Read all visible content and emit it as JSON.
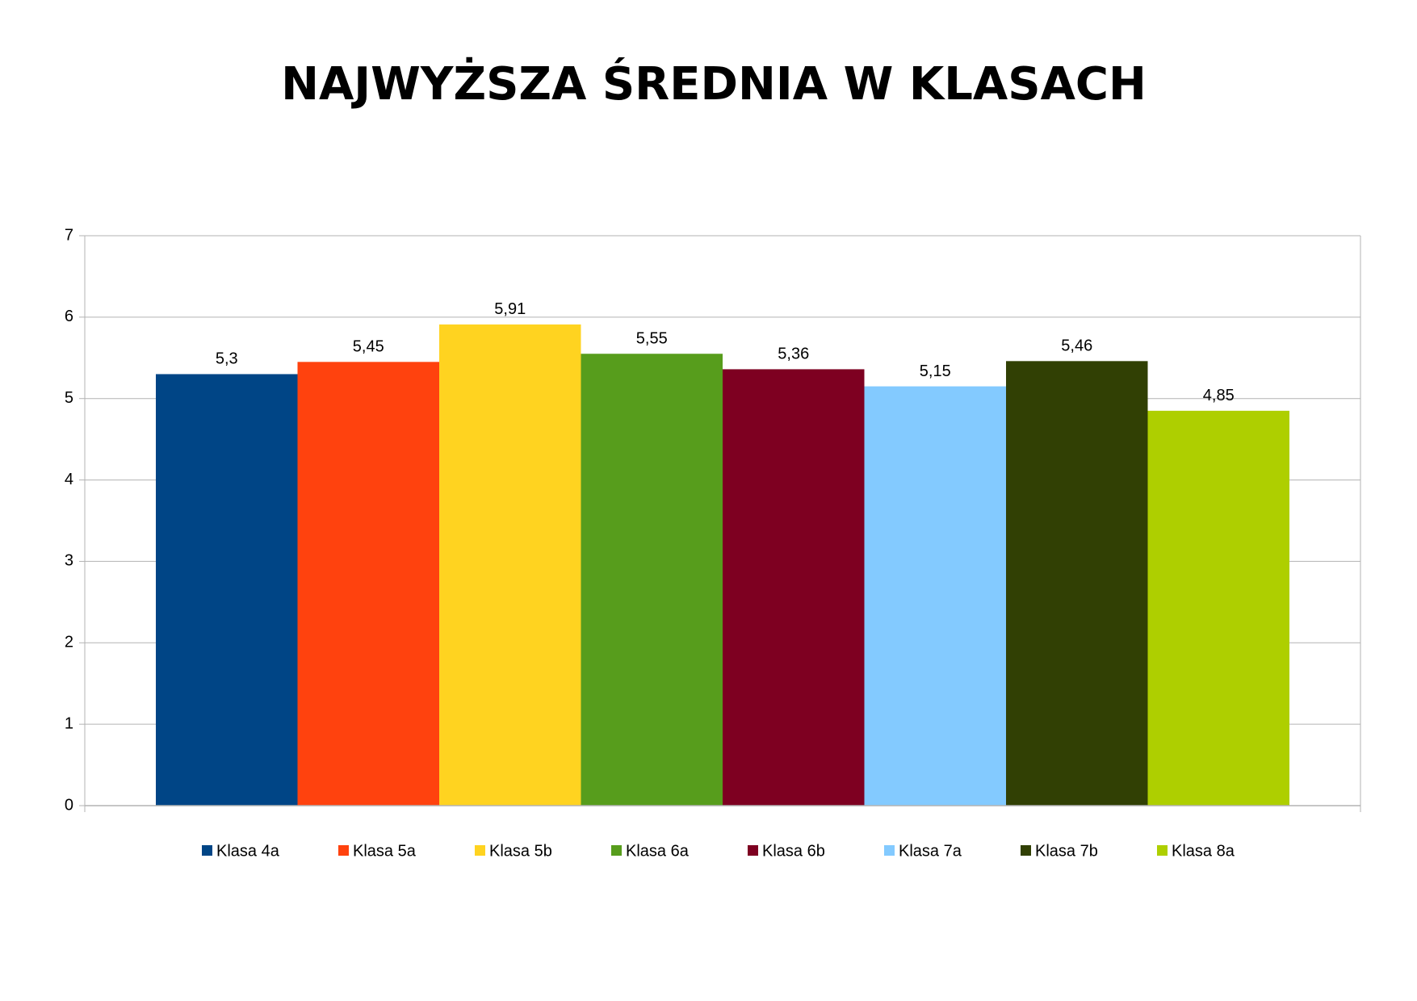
{
  "chart_data": {
    "type": "bar",
    "title": "NAJWYŻSZA ŚREDNIA W KLASACH",
    "series": [
      {
        "name": "Klasa 4a",
        "color": "#004586",
        "values": [
          5.3
        ],
        "value_labels": [
          "5,3"
        ]
      },
      {
        "name": "Klasa 5a",
        "color": "#ff420e",
        "values": [
          5.45
        ],
        "value_labels": [
          "5,45"
        ]
      },
      {
        "name": "Klasa 5b",
        "color": "#ffd320",
        "values": [
          5.91
        ],
        "value_labels": [
          "5,91"
        ]
      },
      {
        "name": "Klasa 6a",
        "color": "#579d1c",
        "values": [
          5.55
        ],
        "value_labels": [
          "5,55"
        ]
      },
      {
        "name": "Klasa 6b",
        "color": "#7e0021",
        "values": [
          5.36
        ],
        "value_labels": [
          "5,36"
        ]
      },
      {
        "name": "Klasa 7a",
        "color": "#83caff",
        "values": [
          5.15
        ],
        "value_labels": [
          "5,15"
        ]
      },
      {
        "name": "Klasa 7b",
        "color": "#314004",
        "values": [
          5.46
        ],
        "value_labels": [
          "5,46"
        ]
      },
      {
        "name": "Klasa 8a",
        "color": "#aecf00",
        "values": [
          4.85
        ],
        "value_labels": [
          "4,85"
        ]
      }
    ],
    "ylim": [
      0,
      7
    ],
    "yticks": [
      0,
      1,
      2,
      3,
      4,
      5,
      6,
      7
    ],
    "grid": true,
    "legend": "bottom"
  }
}
